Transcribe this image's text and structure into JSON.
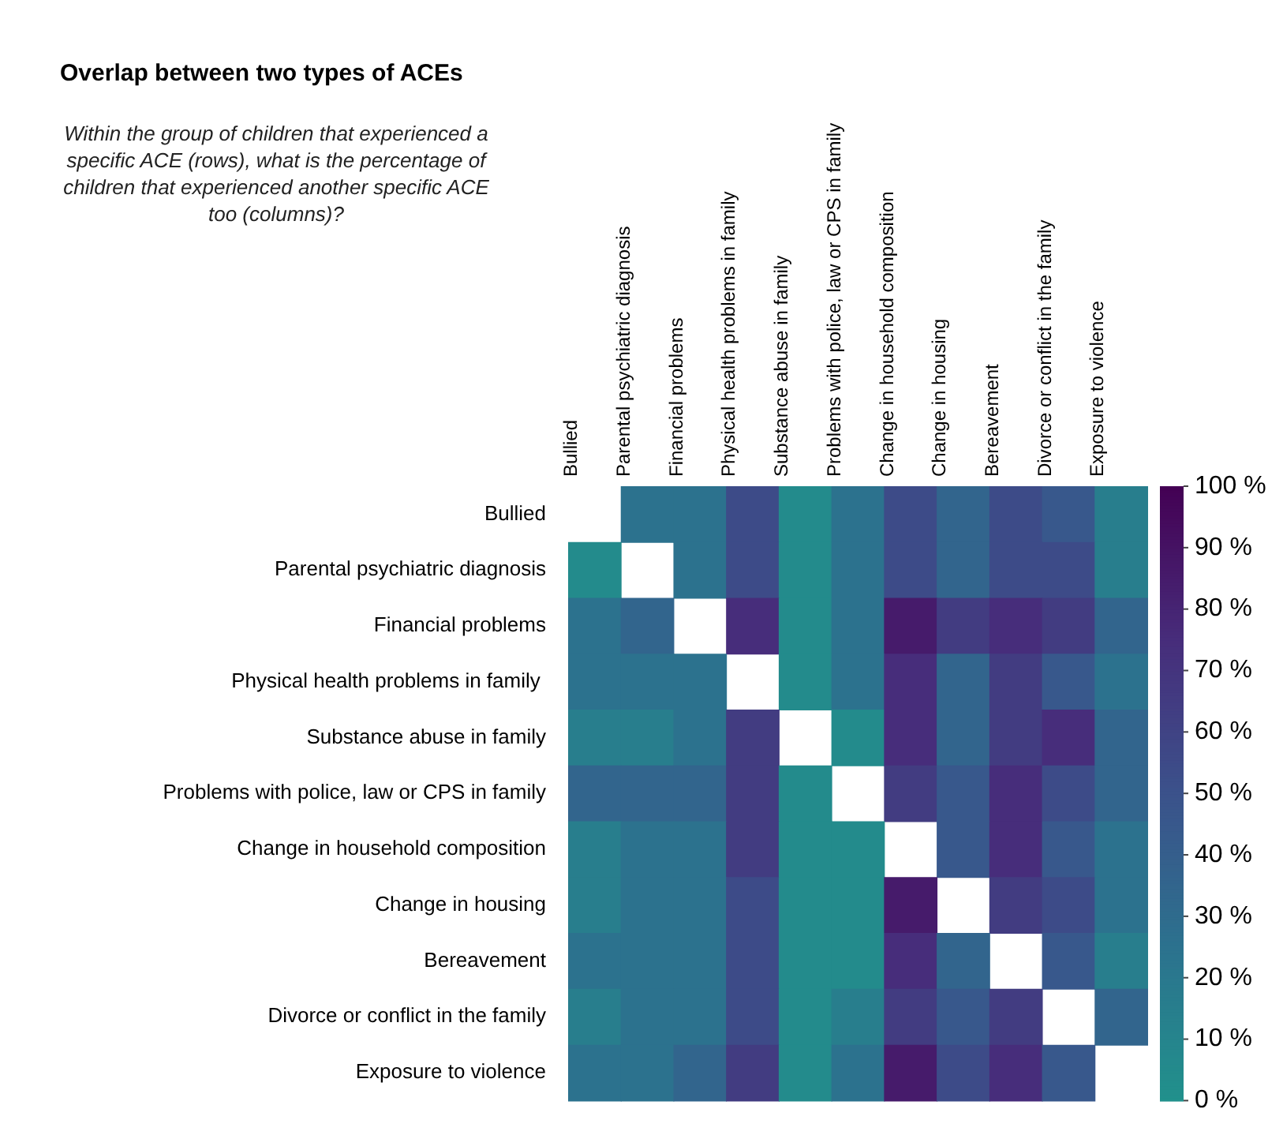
{
  "chart_data": {
    "type": "heatmap",
    "title": "Overlap between two types of ACEs",
    "subtitle": "Within the group of children that experienced a specific ACE (rows), what is the percentage of children that experienced another specific ACE too (columns)?",
    "categories": [
      "Bullied",
      "Parental psychiatric diagnosis",
      "Financial problems",
      "Physical health problems in family",
      "Substance abuse in family",
      "Problems with police, law or CPS in family",
      "Change in household composition",
      "Change in housing",
      "Bereavement",
      "Divorce or conflict in the family",
      "Exposure to violence"
    ],
    "y_categories": [
      "Bullied",
      "Parental psychiatric diagnosis",
      "Financial problems",
      "Physical health problems in family ",
      "Substance abuse in family",
      "Problems with police, law or CPS in family",
      "Change in household composition",
      "Change in housing",
      "Bereavement",
      "Divorce or conflict in the family",
      "Exposure to violence"
    ],
    "cells": [
      [
        null,
        25,
        25,
        55,
        5,
        25,
        55,
        35,
        55,
        45,
        15
      ],
      [
        5,
        null,
        25,
        55,
        5,
        25,
        55,
        35,
        55,
        55,
        15
      ],
      [
        25,
        35,
        null,
        75,
        5,
        25,
        85,
        65,
        75,
        65,
        35
      ],
      [
        25,
        25,
        25,
        null,
        5,
        25,
        75,
        35,
        65,
        45,
        25
      ],
      [
        15,
        15,
        25,
        65,
        null,
        5,
        75,
        35,
        65,
        75,
        35
      ],
      [
        35,
        35,
        35,
        65,
        5,
        null,
        65,
        45,
        75,
        55,
        35
      ],
      [
        15,
        25,
        25,
        65,
        5,
        5,
        null,
        45,
        75,
        45,
        25
      ],
      [
        15,
        25,
        25,
        55,
        5,
        5,
        85,
        null,
        65,
        55,
        25
      ],
      [
        25,
        25,
        25,
        55,
        5,
        5,
        75,
        35,
        null,
        45,
        15
      ],
      [
        15,
        25,
        25,
        55,
        5,
        15,
        65,
        45,
        65,
        null,
        35
      ],
      [
        25,
        25,
        35,
        65,
        5,
        25,
        85,
        55,
        75,
        45,
        null
      ]
    ],
    "clim": [
      0,
      100
    ],
    "cticks": [
      {
        "value": 0,
        "label": "0 %"
      },
      {
        "value": 10,
        "label": "10 %"
      },
      {
        "value": 20,
        "label": "20 %"
      },
      {
        "value": 30,
        "label": "30 %"
      },
      {
        "value": 40,
        "label": "40 %"
      },
      {
        "value": 50,
        "label": "50 %"
      },
      {
        "value": 60,
        "label": "60 %"
      },
      {
        "value": 70,
        "label": "70 %"
      },
      {
        "value": 80,
        "label": "80 %"
      },
      {
        "value": 90,
        "label": "90 %"
      },
      {
        "value": 100,
        "label": "100 %"
      }
    ]
  }
}
